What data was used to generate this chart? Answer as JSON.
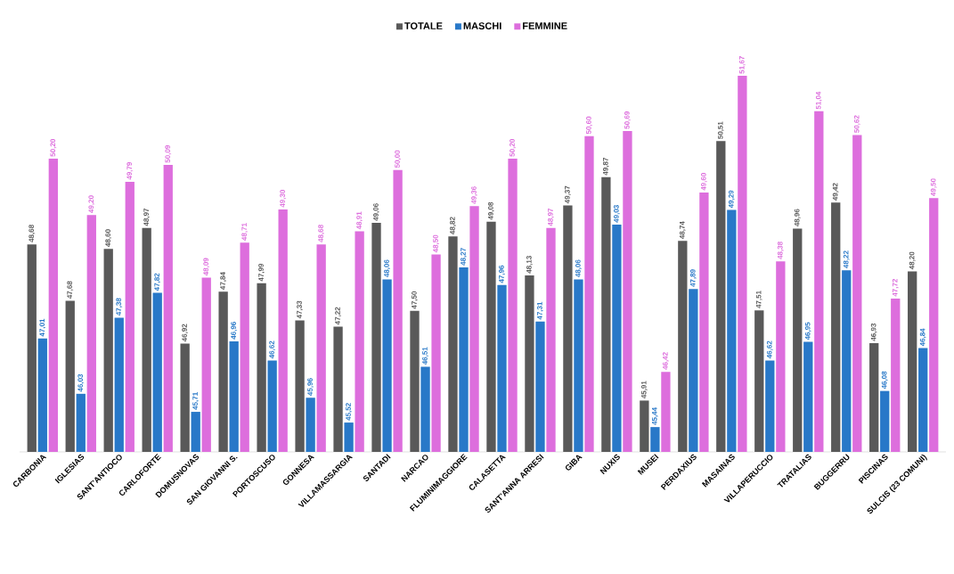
{
  "chart_data": {
    "type": "bar",
    "categories": [
      "CARBONIA",
      "IGLESIAS",
      "SANT'ANTIOCO",
      "CARLOFORTE",
      "DOMUSNOVAS",
      "SAN GIOVANNI S.",
      "PORTOSCUSO",
      "GONNESA",
      "VILLAMASSARGIA",
      "SANTADI",
      "NARCAO",
      "FLUMINIMAGGIORE",
      "CALASETTA",
      "SANT'ANNA ARRESI",
      "GIBA",
      "NUXIS",
      "MUSEI",
      "PERDAXIUS",
      "MASAINAS",
      "VILLAPERUCCIO",
      "TRATALIAS",
      "BUGGERRU",
      "PISCINAS",
      "SULCIS (23 COMUNI)"
    ],
    "series": [
      {
        "name": "TOTALE",
        "color": "#595959",
        "values": [
          48.68,
          47.68,
          48.6,
          48.97,
          46.92,
          47.84,
          47.99,
          47.33,
          47.22,
          49.06,
          47.5,
          48.82,
          49.08,
          48.13,
          49.37,
          49.87,
          45.91,
          48.74,
          50.51,
          47.51,
          48.96,
          49.42,
          46.93,
          48.2
        ],
        "value_labels": [
          "48,68",
          "47,68",
          "48,60",
          "48,97",
          "46,92",
          "47,84",
          "47,99",
          "47,33",
          "47,22",
          "49,06",
          "47,50",
          "48,82",
          "49,08",
          "48,13",
          "49,37",
          "49,87",
          "45,91",
          "48,74",
          "50,51",
          "47,51",
          "48,96",
          "49,42",
          "46,93",
          "48,20"
        ]
      },
      {
        "name": "MASCHI",
        "color": "#2878c8",
        "values": [
          47.01,
          46.03,
          47.38,
          47.82,
          45.71,
          46.96,
          46.62,
          45.96,
          45.52,
          48.06,
          46.51,
          48.27,
          47.96,
          47.31,
          48.06,
          49.03,
          45.44,
          47.89,
          49.29,
          46.62,
          46.95,
          48.22,
          46.08,
          46.84
        ],
        "value_labels": [
          "47,01",
          "46,03",
          "47,38",
          "47,82",
          "45,71",
          "46,96",
          "46,62",
          "45,96",
          "45,52",
          "48,06",
          "46,51",
          "48,27",
          "47,96",
          "47,31",
          "48,06",
          "49,03",
          "45,44",
          "47,89",
          "49,29",
          "46,62",
          "46,95",
          "48,22",
          "46,08",
          "46,84"
        ]
      },
      {
        "name": "FEMMINE",
        "color": "#dd6edd",
        "values": [
          50.2,
          49.2,
          49.79,
          50.09,
          48.09,
          48.71,
          49.3,
          48.68,
          48.91,
          50.0,
          48.5,
          49.36,
          50.2,
          48.97,
          50.6,
          50.69,
          46.42,
          49.6,
          51.67,
          48.38,
          51.04,
          50.62,
          47.72,
          49.5
        ],
        "value_labels": [
          "50,20",
          "49,20",
          "49,79",
          "50,09",
          "48,09",
          "48,71",
          "49,30",
          "48,68",
          "48,91",
          "50,00",
          "48,50",
          "49,36",
          "50,20",
          "48,97",
          "50,60",
          "50,69",
          "46,42",
          "49,60",
          "51,67",
          "48,38",
          "51,04",
          "50,62",
          "47,72",
          "49,50"
        ]
      }
    ],
    "ylim": [
      45,
      51.67
    ],
    "tick_labels": "x",
    "legend": "top"
  }
}
